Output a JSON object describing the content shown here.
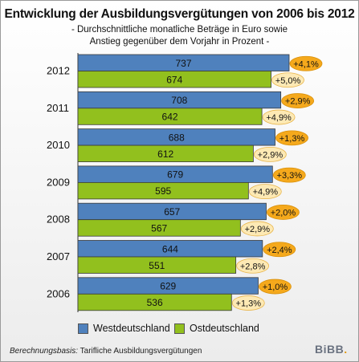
{
  "title": "Entwicklung der Ausbildungsvergütungen von 2006 bis 2012",
  "subtitle_line1": "- Durchschnittliche monatliche Beträge in Euro sowie",
  "subtitle_line2": "Anstieg gegenüber dem Vorjahr in Prozent -",
  "colors": {
    "west": "#4f81bd",
    "ost": "#92c01e",
    "badge": "#f5a91c"
  },
  "legend": {
    "west_label": "Westdeutschland",
    "ost_label": "Ostdeutschland"
  },
  "footer": {
    "label": "Berechnungsbasis:",
    "text": " Tarifliche Ausbildungsvergütungen"
  },
  "logo_text": "BiBB",
  "logo_dot": ".",
  "chart_data": {
    "type": "bar",
    "orientation": "horizontal",
    "categories": [
      "2012",
      "2011",
      "2010",
      "2009",
      "2008",
      "2007",
      "2006"
    ],
    "series": [
      {
        "name": "Westdeutschland",
        "values": [
          737,
          708,
          688,
          679,
          657,
          644,
          629
        ],
        "change": [
          "+4,1%",
          "+2,9%",
          "+1,3%",
          "+3,3%",
          "+2,0%",
          "+2,4%",
          "+1,0%"
        ]
      },
      {
        "name": "Ostdeutschland",
        "values": [
          674,
          642,
          612,
          595,
          567,
          551,
          536
        ],
        "change": [
          "+5,0%",
          "+4,9%",
          "+2,9%",
          "+4,9%",
          "+2,9%",
          "+2,8%",
          "+1,3%"
        ]
      }
    ],
    "legend_position": "bottom"
  }
}
